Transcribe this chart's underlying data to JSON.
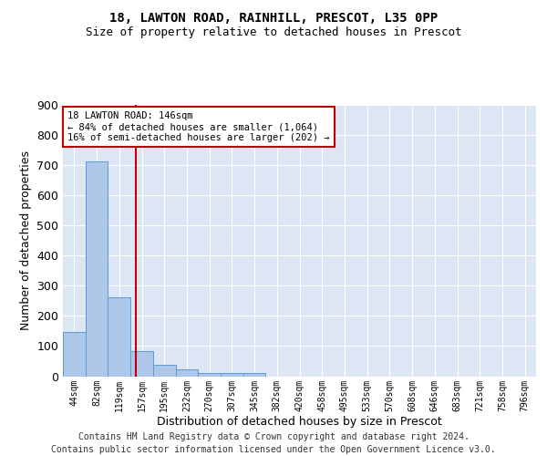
{
  "title1": "18, LAWTON ROAD, RAINHILL, PRESCOT, L35 0PP",
  "title2": "Size of property relative to detached houses in Prescot",
  "xlabel": "Distribution of detached houses by size in Prescot",
  "ylabel": "Number of detached properties",
  "bar_labels": [
    "44sqm",
    "82sqm",
    "119sqm",
    "157sqm",
    "195sqm",
    "232sqm",
    "270sqm",
    "307sqm",
    "345sqm",
    "382sqm",
    "420sqm",
    "458sqm",
    "495sqm",
    "533sqm",
    "570sqm",
    "608sqm",
    "646sqm",
    "683sqm",
    "721sqm",
    "758sqm",
    "796sqm"
  ],
  "bar_values": [
    148,
    711,
    263,
    82,
    38,
    22,
    11,
    11,
    11,
    0,
    0,
    0,
    0,
    0,
    0,
    0,
    0,
    0,
    0,
    0,
    0
  ],
  "bar_color": "#aec6e8",
  "bar_edge_color": "#5b9bd5",
  "bg_color": "#dce6f5",
  "grid_color": "#ffffff",
  "vline_x": 2.72,
  "vline_color": "#c00000",
  "annotation_line1": "18 LAWTON ROAD: 146sqm",
  "annotation_line2": "← 84% of detached houses are smaller (1,064)",
  "annotation_line3": "16% of semi-detached houses are larger (202) →",
  "annotation_box_color": "#ffffff",
  "annotation_box_edge": "#c00000",
  "footer": "Contains HM Land Registry data © Crown copyright and database right 2024.\nContains public sector information licensed under the Open Government Licence v3.0.",
  "ylim": [
    0,
    900
  ],
  "yticks": [
    0,
    100,
    200,
    300,
    400,
    500,
    600,
    700,
    800,
    900
  ]
}
